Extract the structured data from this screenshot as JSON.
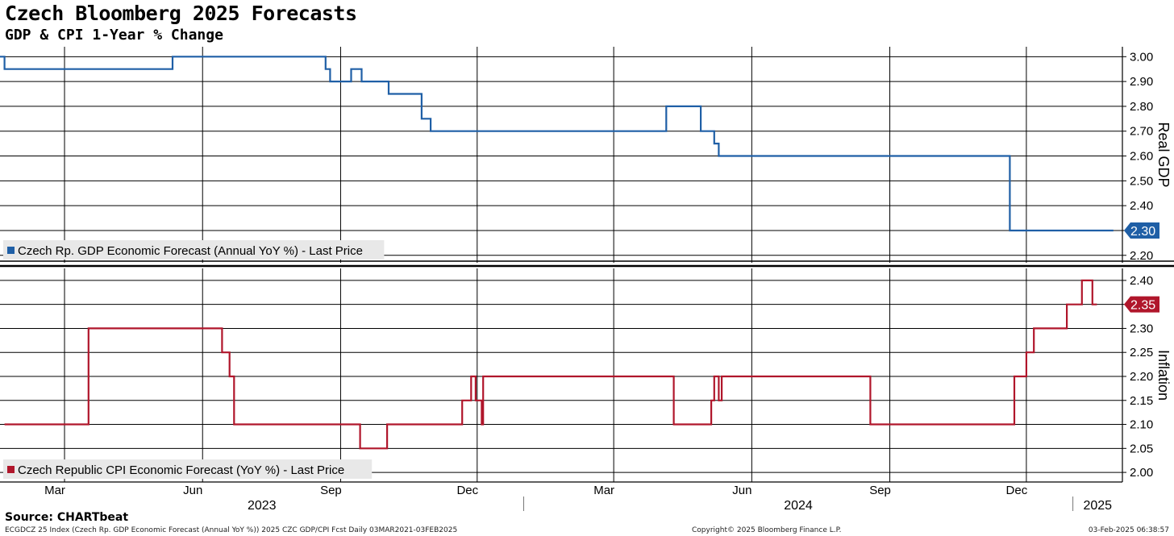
{
  "header": {
    "title": "Czech Bloomberg 2025 Forecasts",
    "subtitle": "GDP & CPI 1-Year % Change"
  },
  "footer": {
    "source": "Source: CHARTbeat",
    "left": "ECGDCZ 25 Index (Czech Rp. GDP Economic Forecast (Annual YoY %)) 2025 CZC GDP/CPI Fcst  Daily 03MAR2021-03FEB2025",
    "copyright": "Copyright© 2025 Bloomberg Finance L.P.",
    "timestamp": "03-Feb-2025 06:38:57"
  },
  "colors": {
    "gdp": "#1f5fa6",
    "cpi": "#b0162b",
    "grid": "#000000"
  },
  "chart_data": [
    {
      "type": "line",
      "ylabel": "Real GDP",
      "ylim": [
        2.17,
        3.04
      ],
      "ticks": [
        "3.00",
        "2.90",
        "2.80",
        "2.70",
        "2.60",
        "2.50",
        "2.40",
        "2.30",
        "2.20"
      ],
      "tick_values": [
        3.0,
        2.9,
        2.8,
        2.7,
        2.6,
        2.5,
        2.4,
        2.3,
        2.2
      ],
      "last_value": "2.30",
      "series": [
        {
          "name": "Czech Rp. GDP Economic Forecast (Annual YoY %) - Last Price",
          "points": [
            [
              "2023-01-17",
              3.0
            ],
            [
              "2023-01-20",
              3.0
            ],
            [
              "2023-01-20",
              2.95
            ],
            [
              "2023-05-12",
              2.95
            ],
            [
              "2023-05-12",
              3.0
            ],
            [
              "2023-08-22",
              3.0
            ],
            [
              "2023-08-22",
              2.95
            ],
            [
              "2023-08-25",
              2.95
            ],
            [
              "2023-08-25",
              2.9
            ],
            [
              "2023-09-08",
              2.9
            ],
            [
              "2023-09-08",
              2.95
            ],
            [
              "2023-09-15",
              2.95
            ],
            [
              "2023-09-15",
              2.9
            ],
            [
              "2023-10-03",
              2.9
            ],
            [
              "2023-10-03",
              2.85
            ],
            [
              "2023-10-25",
              2.85
            ],
            [
              "2023-10-25",
              2.75
            ],
            [
              "2023-10-31",
              2.75
            ],
            [
              "2023-10-31",
              2.7
            ],
            [
              "2024-04-05",
              2.7
            ],
            [
              "2024-04-05",
              2.8
            ],
            [
              "2024-04-28",
              2.8
            ],
            [
              "2024-04-28",
              2.7
            ],
            [
              "2024-05-07",
              2.7
            ],
            [
              "2024-05-07",
              2.65
            ],
            [
              "2024-05-10",
              2.65
            ],
            [
              "2024-05-10",
              2.6
            ],
            [
              "2024-11-20",
              2.6
            ],
            [
              "2024-11-20",
              2.3
            ],
            [
              "2025-01-28",
              2.3
            ]
          ]
        }
      ]
    },
    {
      "type": "line",
      "ylabel": "Inflation",
      "ylim": [
        1.98,
        2.425
      ],
      "ticks": [
        "2.40",
        "2.35",
        "2.30",
        "2.25",
        "2.20",
        "2.15",
        "2.10",
        "2.05",
        "2.00"
      ],
      "tick_values": [
        2.4,
        2.35,
        2.3,
        2.25,
        2.2,
        2.15,
        2.1,
        2.05,
        2.0
      ],
      "last_value": "2.35",
      "series": [
        {
          "name": "Czech Republic CPI Economic Forecast (YoY %) - Last Price",
          "points": [
            [
              "2023-01-20",
              2.1
            ],
            [
              "2023-03-17",
              2.1
            ],
            [
              "2023-03-17",
              2.3
            ],
            [
              "2023-06-14",
              2.3
            ],
            [
              "2023-06-14",
              2.25
            ],
            [
              "2023-06-19",
              2.25
            ],
            [
              "2023-06-19",
              2.2
            ],
            [
              "2023-06-22",
              2.2
            ],
            [
              "2023-06-22",
              2.1
            ],
            [
              "2023-09-14",
              2.1
            ],
            [
              "2023-09-14",
              2.05
            ],
            [
              "2023-10-02",
              2.05
            ],
            [
              "2023-10-02",
              2.1
            ],
            [
              "2023-11-21",
              2.1
            ],
            [
              "2023-11-21",
              2.15
            ],
            [
              "2023-11-27",
              2.15
            ],
            [
              "2023-11-27",
              2.2
            ],
            [
              "2023-11-30",
              2.2
            ],
            [
              "2023-11-30",
              2.15
            ],
            [
              "2023-12-04",
              2.15
            ],
            [
              "2023-12-04",
              2.1
            ],
            [
              "2023-12-05",
              2.1
            ],
            [
              "2023-12-05",
              2.2
            ],
            [
              "2024-04-10",
              2.2
            ],
            [
              "2024-04-10",
              2.1
            ],
            [
              "2024-05-05",
              2.1
            ],
            [
              "2024-05-05",
              2.15
            ],
            [
              "2024-05-07",
              2.15
            ],
            [
              "2024-05-07",
              2.2
            ],
            [
              "2024-05-10",
              2.2
            ],
            [
              "2024-05-10",
              2.15
            ],
            [
              "2024-05-12",
              2.15
            ],
            [
              "2024-05-12",
              2.2
            ],
            [
              "2024-08-19",
              2.2
            ],
            [
              "2024-08-19",
              2.1
            ],
            [
              "2024-11-23",
              2.1
            ],
            [
              "2024-11-23",
              2.2
            ],
            [
              "2024-12-01",
              2.2
            ],
            [
              "2024-12-01",
              2.25
            ],
            [
              "2024-12-06",
              2.25
            ],
            [
              "2024-12-06",
              2.3
            ],
            [
              "2024-12-28",
              2.3
            ],
            [
              "2024-12-28",
              2.35
            ],
            [
              "2025-01-07",
              2.35
            ],
            [
              "2025-01-07",
              2.4
            ],
            [
              "2025-01-14",
              2.4
            ],
            [
              "2025-01-14",
              2.35
            ],
            [
              "2025-01-17",
              2.35
            ]
          ]
        }
      ]
    }
  ],
  "x_axis": {
    "range": [
      "2023-01-17",
      "2025-02-03"
    ],
    "months": [
      {
        "label": "Mar",
        "date": "2023-03-01"
      },
      {
        "label": "Jun",
        "date": "2023-06-01"
      },
      {
        "label": "Sep",
        "date": "2023-09-01"
      },
      {
        "label": "Dec",
        "date": "2023-12-01"
      },
      {
        "label": "Mar",
        "date": "2024-03-01"
      },
      {
        "label": "Jun",
        "date": "2024-06-01"
      },
      {
        "label": "Sep",
        "date": "2024-09-01"
      },
      {
        "label": "Dec",
        "date": "2024-12-01"
      }
    ],
    "years": [
      {
        "label": "2023",
        "from": "2023-01-17",
        "to": "2024-01-01"
      },
      {
        "label": "2024",
        "from": "2024-01-01",
        "to": "2025-01-01"
      },
      {
        "label": "2025",
        "from": "2025-01-01",
        "to": "2025-02-03"
      }
    ]
  }
}
